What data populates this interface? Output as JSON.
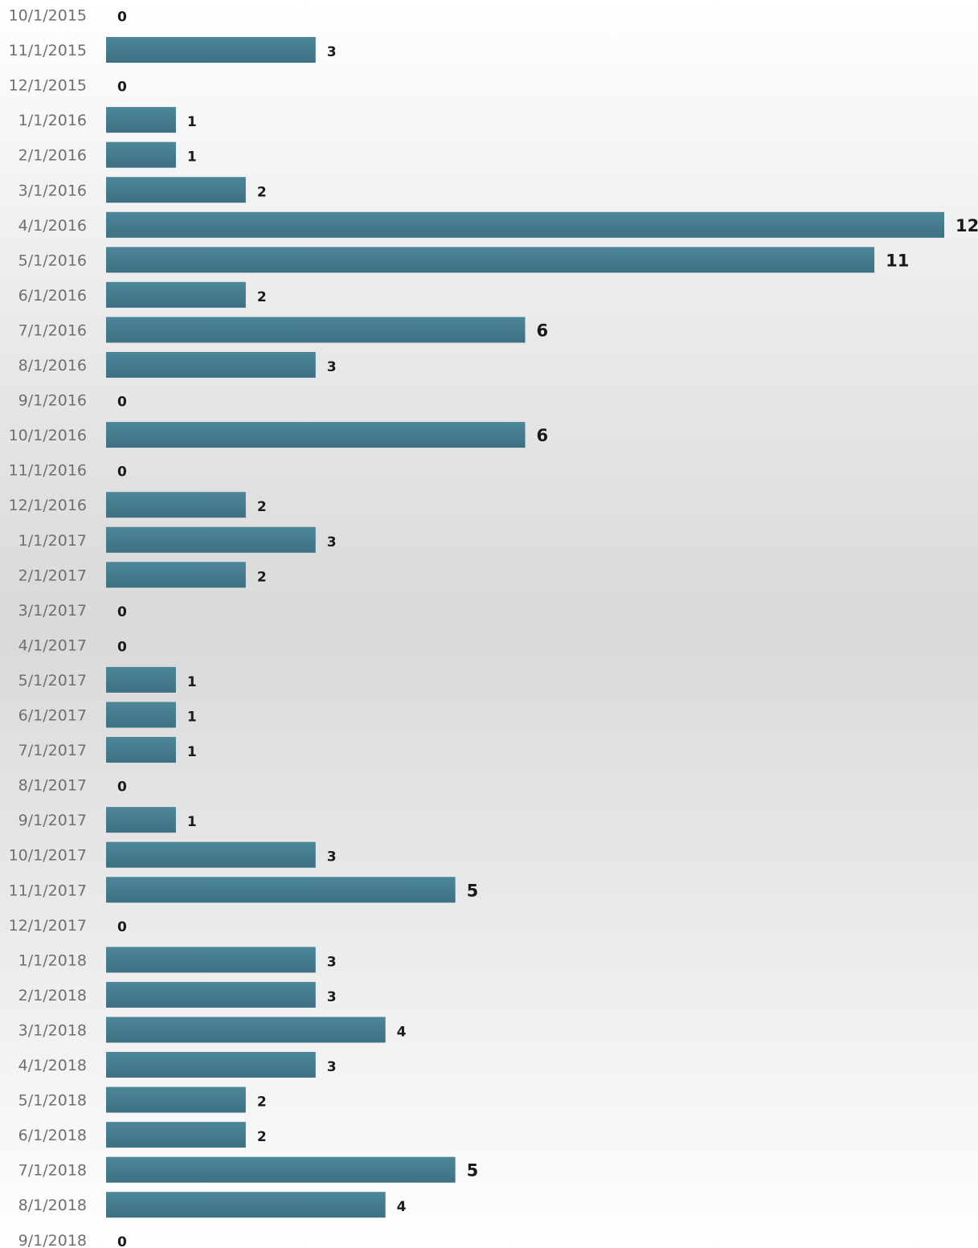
{
  "chart_data": {
    "type": "bar",
    "orientation": "horizontal",
    "title": "",
    "xlabel": "",
    "ylabel": "",
    "xlim": [
      0,
      12
    ],
    "grid": false,
    "legend": "none",
    "bar_color": "#457e90",
    "categories": [
      "10/1/2015",
      "11/1/2015",
      "12/1/2015",
      "1/1/2016",
      "2/1/2016",
      "3/1/2016",
      "4/1/2016",
      "5/1/2016",
      "6/1/2016",
      "7/1/2016",
      "8/1/2016",
      "9/1/2016",
      "10/1/2016",
      "11/1/2016",
      "12/1/2016",
      "1/1/2017",
      "2/1/2017",
      "3/1/2017",
      "4/1/2017",
      "5/1/2017",
      "6/1/2017",
      "7/1/2017",
      "8/1/2017",
      "9/1/2017",
      "10/1/2017",
      "11/1/2017",
      "12/1/2017",
      "1/1/2018",
      "2/1/2018",
      "3/1/2018",
      "4/1/2018",
      "5/1/2018",
      "6/1/2018",
      "7/1/2018",
      "8/1/2018",
      "9/1/2018"
    ],
    "values": [
      0,
      3,
      0,
      1,
      1,
      2,
      12,
      11,
      2,
      6,
      3,
      0,
      6,
      0,
      2,
      3,
      2,
      0,
      0,
      1,
      1,
      1,
      0,
      1,
      3,
      5,
      0,
      3,
      3,
      4,
      3,
      2,
      2,
      5,
      4,
      0
    ]
  }
}
